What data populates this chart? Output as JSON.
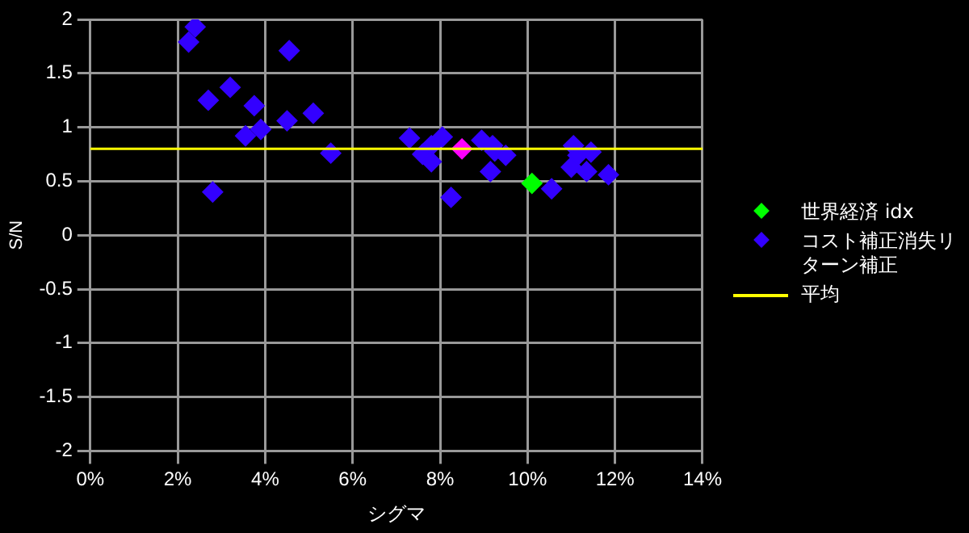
{
  "chart_data": {
    "type": "scatter",
    "xlabel": "シグマ",
    "ylabel": "S/N",
    "xlim": [
      0,
      14
    ],
    "xticks": [
      {
        "value": 0,
        "label": "0%"
      },
      {
        "value": 2,
        "label": "2%"
      },
      {
        "value": 4,
        "label": "4%"
      },
      {
        "value": 6,
        "label": "6%"
      },
      {
        "value": 8,
        "label": "8%"
      },
      {
        "value": 10,
        "label": "10%"
      },
      {
        "value": 12,
        "label": "12%"
      },
      {
        "value": 14,
        "label": "14%"
      }
    ],
    "ylim": [
      -2,
      2
    ],
    "yticks": [
      -2,
      -1.5,
      -1,
      -0.5,
      0,
      0.5,
      1,
      1.5,
      2
    ],
    "grid": true,
    "legend": "right",
    "marker": "diamond",
    "series": [
      {
        "color": "#ff00ff",
        "x": [
          8.5
        ],
        "values": [
          0.8
        ]
      },
      {
        "name": "世界経済 idx",
        "color": "#00ff00",
        "x": [
          10.1
        ],
        "values": [
          0.48
        ]
      },
      {
        "name": "コスト補正消失リターン補正",
        "color": "#3300ff",
        "x": [
          2.25,
          2.4,
          4.55,
          3.2,
          2.7,
          3.75,
          5.1,
          4.5,
          3.9,
          3.55,
          5.5,
          2.8,
          7.3,
          7.8,
          7.6,
          7.8,
          8.05,
          8.25,
          8.95,
          9.2,
          9.25,
          9.5,
          9.15,
          10.55,
          11.05,
          11.15,
          11.45,
          11.0,
          11.35,
          11.85
        ],
        "values": [
          1.79,
          1.93,
          1.71,
          1.37,
          1.25,
          1.2,
          1.13,
          1.06,
          0.98,
          0.92,
          0.76,
          0.4,
          0.9,
          0.83,
          0.75,
          0.68,
          0.91,
          0.35,
          0.88,
          0.83,
          0.78,
          0.74,
          0.59,
          0.43,
          0.83,
          0.74,
          0.77,
          0.63,
          0.59,
          0.56
        ]
      }
    ],
    "ref_lines": [
      {
        "axis": "y",
        "value": 0.8,
        "label": "平均",
        "color": "#ffff00"
      }
    ]
  }
}
